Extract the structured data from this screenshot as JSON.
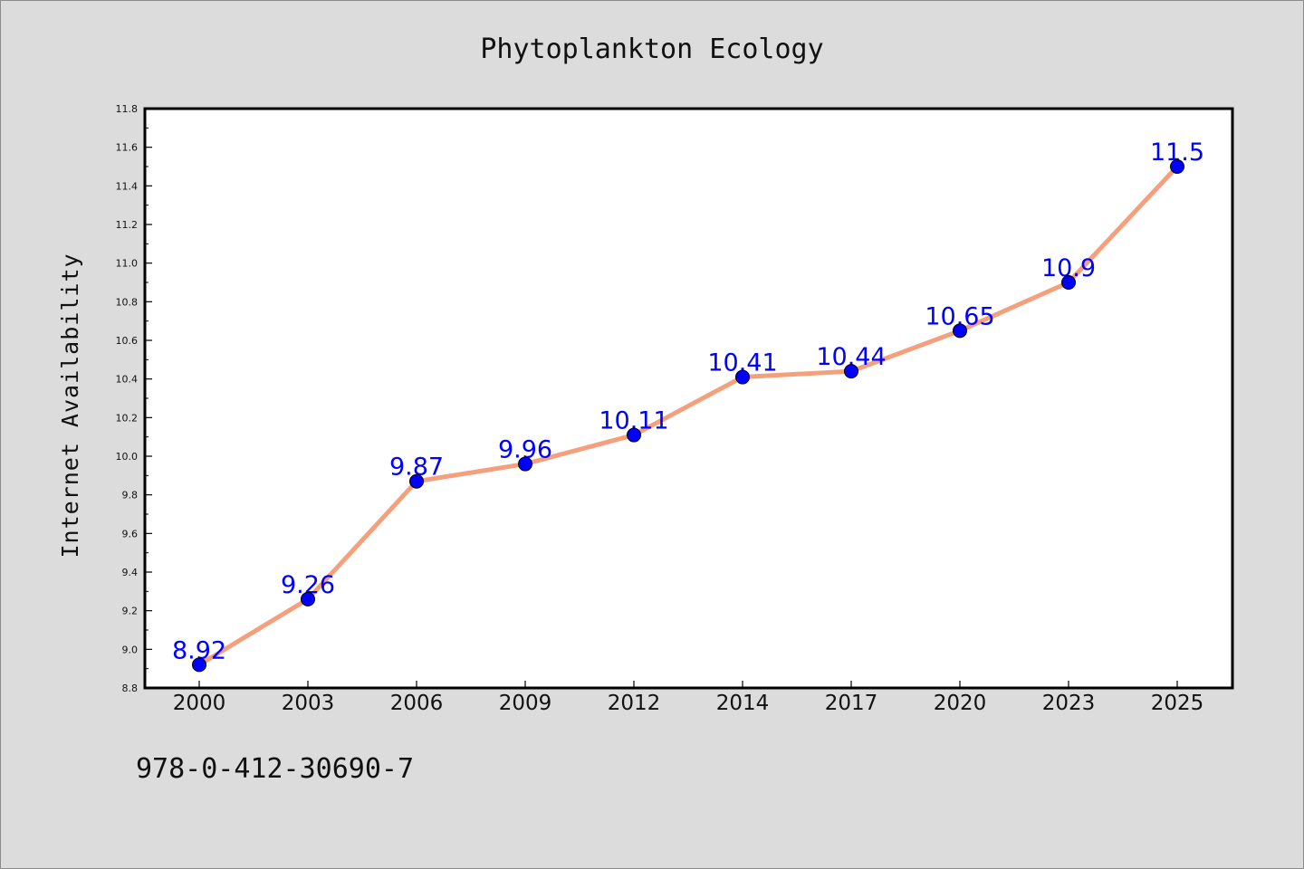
{
  "chart_data": {
    "type": "line",
    "title": "Phytoplankton Ecology",
    "xlabel": "",
    "ylabel": "Internet Availability",
    "categories": [
      "2000",
      "2003",
      "2006",
      "2009",
      "2012",
      "2014",
      "2017",
      "2020",
      "2023",
      "2025"
    ],
    "series": [
      {
        "values": [
          8.92,
          9.26,
          9.87,
          9.96,
          10.11,
          10.41,
          10.44,
          10.65,
          10.9,
          11.5
        ],
        "data_labels": [
          "8.92",
          "9.26",
          "9.87",
          "9.96",
          "10.11",
          "10.41",
          "10.44",
          "10.65",
          "10.9",
          "11.5"
        ],
        "line_color": "#f4a07c",
        "marker_color": "#0000ff"
      }
    ],
    "ylim": [
      8.8,
      11.8
    ],
    "yticks": [
      "8.8",
      "9.0",
      "9.2",
      "9.4",
      "9.6",
      "9.8",
      "10.0",
      "10.2",
      "10.4",
      "10.6",
      "10.8",
      "11.0",
      "11.2",
      "11.4",
      "11.6",
      "11.8"
    ],
    "grid": false,
    "legend": "none"
  },
  "footnote": "978-0-412-30690-7",
  "colors": {
    "background": "#dcdcdc",
    "plot_area": "#ffffff",
    "line": "#f4a07c",
    "marker": "#0000ff",
    "data_label": "#0000ff"
  }
}
